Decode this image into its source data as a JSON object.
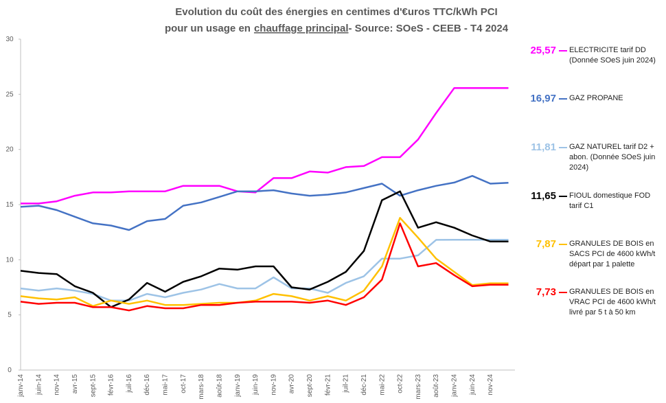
{
  "chart_data": {
    "type": "line",
    "title": [
      "Evolution du coût des énergies en centimes d'€uros TTC/kWh PCI",
      "pour un usage en",
      "chauffage principal",
      "- Source: SOeS - CEEB - T4 2024"
    ],
    "categories": [
      "janv-14",
      "juin-14",
      "nov-14",
      "avr-15",
      "sept-15",
      "févr-16",
      "juil-16",
      "déc-16",
      "mai-17",
      "oct-17",
      "mars-18",
      "août-18",
      "janv-19",
      "juin-19",
      "nov-19",
      "avr-20",
      "sept-20",
      "févr-21",
      "juil-21",
      "déc-21",
      "mai-22",
      "oct-22",
      "mars-23",
      "août-23",
      "janv-24",
      "juin-24",
      "nov-24",
      null
    ],
    "ylim": [
      0,
      30
    ],
    "yticks": [
      0,
      5,
      10,
      15,
      20,
      25,
      30
    ],
    "grid": false,
    "series": [
      {
        "name": "ELECTRICITE tarif DD (Donnée SOeS juin 2024)",
        "color": "#ff00ff",
        "values": [
          15.1,
          15.1,
          15.3,
          15.8,
          16.1,
          16.1,
          16.2,
          16.2,
          16.2,
          16.7,
          16.7,
          16.7,
          16.2,
          16.1,
          17.4,
          17.4,
          18.0,
          17.9,
          18.4,
          18.5,
          19.3,
          19.3,
          20.9,
          23.3,
          25.57,
          25.57,
          25.57,
          25.57
        ],
        "value_labels": [
          null,
          null,
          null,
          null,
          null,
          null,
          null,
          null,
          null,
          null,
          null,
          null,
          null,
          null,
          null,
          null,
          null,
          null,
          null,
          null,
          null,
          null,
          null,
          null,
          null,
          null,
          null,
          "25,57"
        ]
      },
      {
        "name": "GAZ PROPANE",
        "color": "#4472c4",
        "values": [
          14.8,
          14.9,
          14.5,
          13.9,
          13.3,
          13.1,
          12.7,
          13.5,
          13.7,
          14.9,
          15.2,
          15.7,
          16.2,
          16.2,
          16.3,
          16.0,
          15.8,
          15.9,
          16.1,
          16.5,
          16.9,
          15.8,
          16.3,
          16.7,
          17.0,
          17.6,
          16.9,
          16.97
        ],
        "value_labels": [
          null,
          null,
          null,
          null,
          null,
          null,
          null,
          null,
          null,
          null,
          null,
          null,
          null,
          null,
          null,
          null,
          null,
          null,
          null,
          null,
          null,
          null,
          null,
          null,
          null,
          null,
          null,
          "16,97"
        ]
      },
      {
        "name": "GAZ NATUREL tarif D2 + abon. (Donnée SOeS juin 2024)",
        "color": "#9dc3e6",
        "values": [
          7.4,
          7.2,
          7.4,
          7.2,
          6.9,
          6.3,
          6.3,
          6.9,
          6.6,
          7.0,
          7.3,
          7.8,
          7.4,
          7.4,
          8.4,
          7.4,
          7.4,
          7.0,
          7.9,
          8.5,
          10.1,
          10.1,
          10.4,
          11.8,
          11.81,
          11.81,
          11.81,
          11.81
        ],
        "value_labels": [
          null,
          null,
          null,
          null,
          null,
          null,
          null,
          null,
          null,
          null,
          null,
          null,
          null,
          null,
          null,
          null,
          null,
          null,
          null,
          null,
          null,
          null,
          null,
          null,
          null,
          null,
          null,
          "11,81"
        ]
      },
      {
        "name": "FIOUL domestique FOD tarif C1",
        "color": "#000000",
        "values": [
          9.0,
          8.8,
          8.7,
          7.6,
          7.0,
          5.7,
          6.4,
          7.9,
          7.1,
          8.0,
          8.5,
          9.2,
          9.1,
          9.4,
          9.4,
          7.5,
          7.3,
          8.0,
          8.9,
          10.8,
          15.4,
          16.2,
          12.9,
          13.4,
          12.9,
          12.2,
          11.65,
          11.65
        ],
        "value_labels": [
          null,
          null,
          null,
          null,
          null,
          null,
          null,
          null,
          null,
          null,
          null,
          null,
          null,
          null,
          null,
          null,
          null,
          null,
          null,
          null,
          null,
          null,
          null,
          null,
          null,
          null,
          null,
          "11,65"
        ]
      },
      {
        "name": "GRANULES DE BOIS en SACS PCI de 4600 kWh/t départ par 1 palette",
        "color": "#ffc000",
        "values": [
          6.7,
          6.5,
          6.4,
          6.6,
          5.8,
          6.3,
          6.0,
          6.3,
          5.9,
          5.9,
          6.0,
          6.1,
          6.1,
          6.3,
          6.9,
          6.7,
          6.3,
          6.7,
          6.3,
          7.2,
          9.4,
          13.8,
          12.0,
          10.1,
          8.9,
          7.7,
          7.87,
          7.87
        ],
        "value_labels": [
          null,
          null,
          null,
          null,
          null,
          null,
          null,
          null,
          null,
          null,
          null,
          null,
          null,
          null,
          null,
          null,
          null,
          null,
          null,
          null,
          null,
          null,
          null,
          null,
          null,
          null,
          null,
          "7,87"
        ]
      },
      {
        "name": "GRANULES DE BOIS en VRAC  PCI de 4600 kWh/t livré par 5 t à 50 km",
        "color": "#ff0000",
        "values": [
          6.2,
          6.0,
          6.1,
          6.1,
          5.7,
          5.7,
          5.4,
          5.8,
          5.6,
          5.6,
          5.9,
          5.9,
          6.1,
          6.2,
          6.2,
          6.2,
          6.1,
          6.3,
          5.9,
          6.6,
          8.2,
          13.3,
          9.4,
          9.7,
          8.6,
          7.6,
          7.73,
          7.73
        ],
        "value_labels": [
          null,
          null,
          null,
          null,
          null,
          null,
          null,
          null,
          null,
          null,
          null,
          null,
          null,
          null,
          null,
          null,
          null,
          null,
          null,
          null,
          null,
          null,
          null,
          null,
          null,
          null,
          null,
          "7,73"
        ]
      }
    ]
  }
}
